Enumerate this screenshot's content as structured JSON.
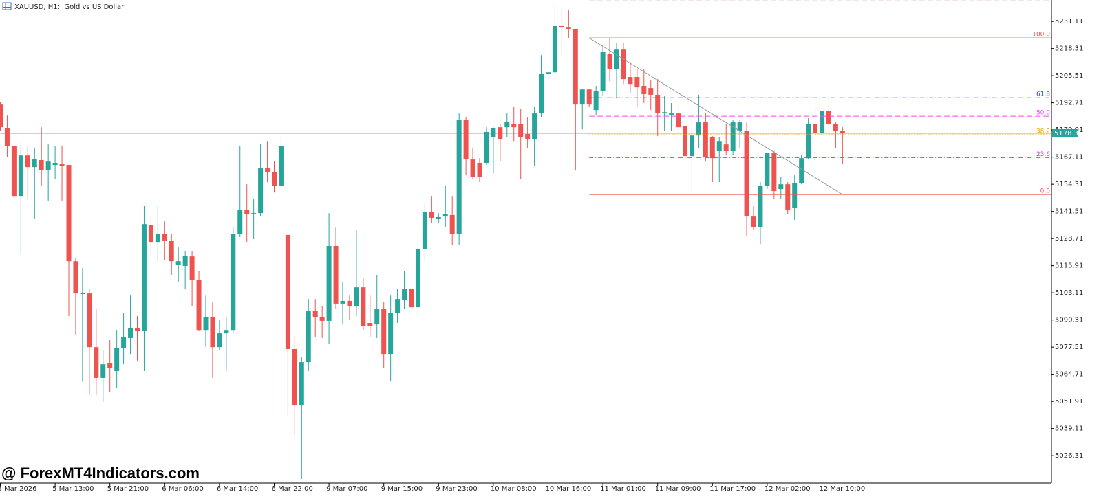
{
  "chart_data": {
    "type": "candlestick",
    "title": "XAUUSD, H1:  Gold vs US Dollar",
    "watermark": "@ ForexMT4Indicators.com",
    "categories": [
      "5 Mar 2026",
      null,
      null,
      null,
      null,
      null,
      null,
      null,
      "5 Mar 13:00",
      null,
      null,
      null,
      null,
      null,
      null,
      null,
      "5 Mar 21:00",
      null,
      null,
      null,
      null,
      null,
      null,
      null,
      "6 Mar 06:00",
      null,
      null,
      null,
      null,
      null,
      null,
      null,
      "6 Mar 14:00",
      null,
      null,
      null,
      null,
      null,
      null,
      null,
      "6 Mar 22:00",
      null,
      null,
      null,
      null,
      null,
      null,
      null,
      "9 Mar 07:00",
      null,
      null,
      null,
      null,
      null,
      null,
      null,
      "9 Mar 15:00",
      null,
      null,
      null,
      null,
      null,
      null,
      null,
      "9 Mar 23:00",
      null,
      null,
      null,
      null,
      null,
      null,
      null,
      "10 Mar 08:00",
      null,
      null,
      null,
      null,
      null,
      null,
      null,
      "10 Mar 16:00",
      null,
      null,
      null,
      null,
      null,
      null,
      null,
      "11 Mar 01:00",
      null,
      null,
      null,
      null,
      null,
      null,
      null,
      "11 Mar 09:00",
      null,
      null,
      null,
      null,
      null,
      null,
      null,
      "11 Mar 17:00",
      null,
      null,
      null,
      null,
      null,
      null,
      null,
      "12 Mar 02:00",
      null,
      null,
      null,
      null,
      null,
      null,
      null,
      "12 Mar 10:00",
      null,
      null,
      null
    ],
    "open": [
      5191.9,
      5180.6,
      5172.5,
      5148.8,
      5167.9,
      5162.4,
      5165.7,
      5161.1,
      5163.4,
      5164.0,
      5163.4,
      5118.0,
      5102.5,
      5102.8,
      5077.5,
      5063.0,
      5070.1,
      5066.2,
      5076.9,
      5081.8,
      5086.3,
      5085.0,
      5135.2,
      5127.1,
      5131.0,
      5127.8,
      5116.4,
      5115.8,
      5120.3,
      5109.3,
      5085.6,
      5091.5,
      5077.5,
      5084.0,
      5085.6,
      5131.0,
      5142.3,
      5140.1,
      5140.7,
      5161.8,
      5160.2,
      5153.7,
      5130.4,
      5076.6,
      5050.0,
      5070.4,
      5094.7,
      5091.5,
      5089.9,
      5125.2,
      5098.0,
      5099.3,
      5097.0,
      5105.7,
      5088.9,
      5088.2,
      5095.4,
      5074.3,
      5093.7,
      5099.6,
      5105.1,
      5096.3,
      5123.6,
      5141.4,
      5138.1,
      5139.1,
      5139.8,
      5131.0,
      5184.5,
      5166.0,
      5164.4,
      5164.4,
      5176.4,
      5181.2,
      5181.2,
      5182.8,
      5182.8,
      5178.0,
      5175.4,
      5187.7,
      5206.2,
      5207.1,
      5228.9,
      5228.2,
      5227.6,
      5191.9,
      5199.0,
      5189.3,
      5198.1,
      5215.9,
      5208.8,
      5217.8,
      5204.9,
      5204.9,
      5200.7,
      5199.7,
      5196.5,
      5187.7,
      5187.1,
      5187.7,
      5181.9,
      5167.6,
      5177.3,
      5183.5,
      5176.4,
      5169.9,
      5173.1,
      5169.9,
      5179.6,
      5179.6,
      5139.1,
      5134.2,
      5153.7,
      5169.2,
      5152.1,
      5154.3,
      5143.0,
      5154.7,
      5166.6,
      5182.8,
      5178.6,
      5188.7,
      5182.8,
      5179.6
    ],
    "high": [
      5193.2,
      5186.7,
      5171.5,
      5173.8,
      5172.5,
      5171.5,
      5181.2,
      5173.1,
      5172.5,
      5172.5,
      5163.4,
      5119.7,
      5114.8,
      5105.1,
      5095.4,
      5075.9,
      5080.8,
      5085.6,
      5093.7,
      5101.8,
      5092.1,
      5144.0,
      5139.1,
      5144.0,
      5136.8,
      5131.0,
      5124.5,
      5122.9,
      5122.9,
      5113.2,
      5101.8,
      5098.6,
      5090.5,
      5091.5,
      5134.2,
      5172.5,
      5154.3,
      5147.2,
      5173.1,
      5174.7,
      5165.0,
      5176.4,
      5130.4,
      5082.4,
      5072.7,
      5100.2,
      5100.2,
      5097.0,
      5140.7,
      5134.2,
      5108.3,
      5101.8,
      5132.6,
      5109.9,
      5101.8,
      5111.6,
      5098.6,
      5101.8,
      5105.1,
      5113.2,
      5108.3,
      5129.4,
      5145.6,
      5148.8,
      5140.7,
      5153.7,
      5148.8,
      5187.7,
      5186.1,
      5171.5,
      5166.6,
      5181.2,
      5181.2,
      5182.8,
      5187.7,
      5190.9,
      5190.0,
      5186.1,
      5190.9,
      5215.2,
      5216.9,
      5238.6,
      5236.3,
      5236.3,
      5226.6,
      5199.0,
      5199.0,
      5200.7,
      5220.1,
      5223.3,
      5221.1,
      5221.1,
      5212.0,
      5208.8,
      5208.8,
      5203.3,
      5203.9,
      5195.8,
      5192.6,
      5194.2,
      5189.3,
      5186.1,
      5196.5,
      5187.7,
      5177.0,
      5176.4,
      5182.8,
      5184.5,
      5184.5,
      5183.5,
      5144.0,
      5155.3,
      5169.2,
      5169.9,
      5157.6,
      5155.3,
      5158.5,
      5168.3,
      5185.4,
      5190.0,
      5190.9,
      5191.9,
      5183.5,
      5181.2
    ],
    "low": [
      5179.6,
      5167.3,
      5147.2,
      5121.3,
      5147.2,
      5138.1,
      5153.7,
      5146.6,
      5156.9,
      5146.6,
      5092.1,
      5083.4,
      5061.3,
      5054.9,
      5054.9,
      5051.6,
      5056.5,
      5058.1,
      5069.4,
      5074.3,
      5071.1,
      5066.2,
      5121.3,
      5118.0,
      5118.7,
      5111.6,
      5108.3,
      5105.1,
      5097.0,
      5085.0,
      5077.5,
      5063.0,
      5075.9,
      5066.2,
      5084.0,
      5129.4,
      5127.1,
      5128.4,
      5139.1,
      5155.3,
      5150.4,
      5153.0,
      5045.1,
      5036.1,
      5015.3,
      5066.2,
      5082.4,
      5081.8,
      5079.2,
      5095.4,
      5088.2,
      5090.5,
      5092.1,
      5085.6,
      5082.4,
      5081.8,
      5067.8,
      5061.3,
      5088.9,
      5095.4,
      5090.5,
      5092.1,
      5118.0,
      5135.9,
      5135.9,
      5134.2,
      5125.5,
      5125.5,
      5158.5,
      5156.9,
      5155.3,
      5163.4,
      5159.5,
      5165.0,
      5176.4,
      5174.7,
      5156.9,
      5171.5,
      5162.8,
      5186.1,
      5195.8,
      5204.9,
      5214.6,
      5223.3,
      5160.8,
      5180.2,
      5190.9,
      5186.7,
      5195.8,
      5202.9,
      5194.8,
      5201.6,
      5197.4,
      5190.9,
      5192.6,
      5189.3,
      5177.0,
      5179.6,
      5179.6,
      5178.0,
      5166.0,
      5149.5,
      5171.5,
      5165.0,
      5155.3,
      5155.3,
      5168.3,
      5168.3,
      5171.5,
      5130.0,
      5132.6,
      5126.1,
      5152.1,
      5147.2,
      5147.2,
      5140.1,
      5137.5,
      5154.3,
      5166.0,
      5176.4,
      5176.4,
      5176.4,
      5171.5,
      5164.0
    ],
    "close": [
      5181.2,
      5172.5,
      5148.8,
      5167.9,
      5162.4,
      5166.3,
      5161.1,
      5165.0,
      5164.4,
      5162.8,
      5118.0,
      5102.8,
      5103.1,
      5077.5,
      5063.0,
      5069.4,
      5067.5,
      5077.2,
      5082.4,
      5086.6,
      5085.0,
      5135.5,
      5127.1,
      5131.0,
      5127.8,
      5118.0,
      5118.0,
      5120.6,
      5109.0,
      5085.6,
      5091.5,
      5077.5,
      5084.0,
      5085.6,
      5131.0,
      5142.3,
      5140.1,
      5140.7,
      5161.8,
      5160.2,
      5153.7,
      5172.5,
      5076.6,
      5050.0,
      5070.4,
      5094.7,
      5091.5,
      5089.9,
      5125.2,
      5098.0,
      5099.3,
      5097.0,
      5105.7,
      5087.3,
      5087.3,
      5095.4,
      5074.3,
      5093.7,
      5100.2,
      5105.1,
      5096.3,
      5123.6,
      5141.4,
      5138.5,
      5138.8,
      5140.1,
      5131.0,
      5184.5,
      5166.0,
      5157.9,
      5157.9,
      5179.0,
      5180.9,
      5175.4,
      5183.8,
      5181.2,
      5176.4,
      5175.4,
      5187.7,
      5206.2,
      5207.1,
      5228.9,
      5228.2,
      5227.6,
      5191.9,
      5199.0,
      5191.9,
      5198.1,
      5216.9,
      5208.8,
      5217.8,
      5203.9,
      5201.6,
      5200.0,
      5196.8,
      5196.5,
      5187.7,
      5188.3,
      5187.7,
      5181.2,
      5167.6,
      5177.3,
      5183.5,
      5167.3,
      5166.6,
      5174.7,
      5169.9,
      5183.5,
      5183.5,
      5139.1,
      5134.2,
      5153.7,
      5169.2,
      5151.1,
      5154.3,
      5142.3,
      5154.7,
      5166.6,
      5182.8,
      5178.6,
      5188.7,
      5182.8,
      5179.6,
      5178.4
    ],
    "up_color": "#26a69a",
    "down_color": "#ef5350",
    "ylim": [
      5013.4,
      5241.2
    ],
    "yticks": [
      5231.11,
      5218.31,
      5205.51,
      5192.71,
      5179.91,
      5167.11,
      5154.31,
      5141.51,
      5128.71,
      5115.91,
      5103.11,
      5090.31,
      5077.51,
      5064.71,
      5051.91,
      5039.11,
      5026.31
    ],
    "current_price": 5178.35,
    "current_price_color": "#26a69a",
    "fibonacci": {
      "high": 5223.33,
      "low": 5149.45,
      "x": [
        86,
        123
      ],
      "levels": [
        {
          "value": 123.6,
          "color": "#a020c0",
          "style": "dashed"
        },
        {
          "value": 100,
          "label": "100.0",
          "color": "#f05050",
          "style": "solid"
        },
        {
          "value": 61.8,
          "label": "61.8",
          "color": "#3344ff",
          "style": "dashdot"
        },
        {
          "value": 50,
          "label": "50.0",
          "color": "#ff44ff",
          "style": "dashed"
        },
        {
          "value": 38.2,
          "label": "38.2",
          "color": "#ffa500",
          "style": "dotted"
        },
        {
          "value": 23.6,
          "label": "23.6",
          "color": "#b040d0",
          "style": "dashdot"
        },
        {
          "value": 0,
          "label": "0.0",
          "color": "#f05050",
          "style": "solid"
        }
      ]
    },
    "trendline": {
      "x": [
        86,
        123
      ],
      "y": [
        5223.33,
        5149.45
      ],
      "color": "#9a9a9a"
    }
  }
}
